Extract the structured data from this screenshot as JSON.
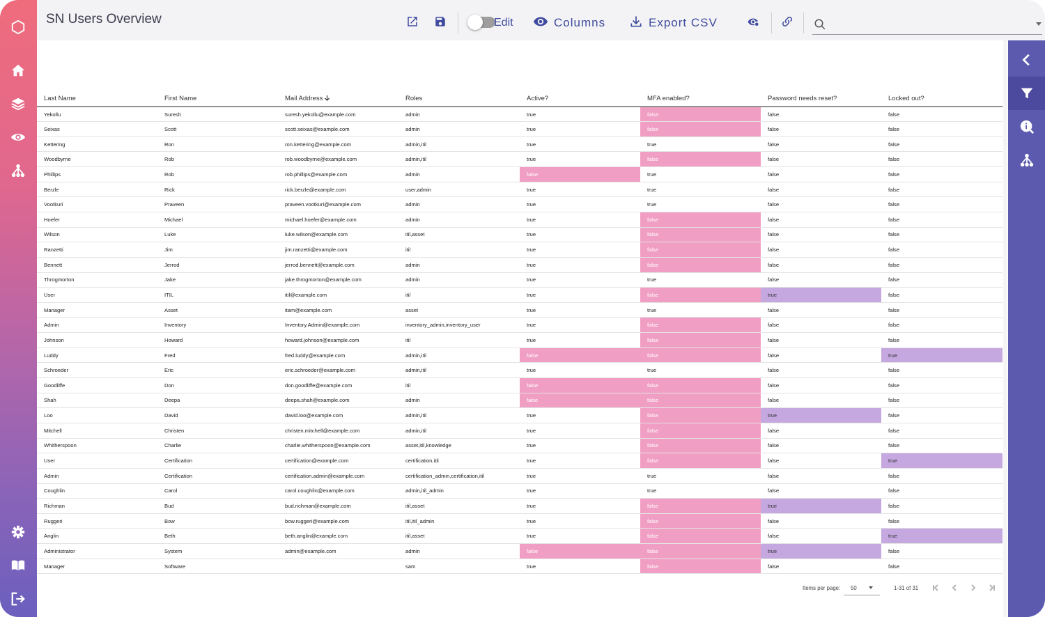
{
  "header": {
    "title": "SN Users Overview",
    "edit_label": "Edit",
    "columns_label": "Columns",
    "export_label": "Export CSV",
    "search_placeholder": ""
  },
  "icons": {
    "left_nav": [
      "logo-hexagon-icon",
      "home-icon",
      "layers-icon",
      "eye-icon",
      "hierarchy-icon",
      "gear-icon",
      "book-icon",
      "logout-icon"
    ],
    "right_panel": [
      "chevron-left-icon",
      "filter-icon",
      "info-icon",
      "hierarchy-icon"
    ]
  },
  "colors": {
    "flag_false": "#f19ec4",
    "flag_true": "#c4a8df",
    "accent": "#3f4b9e",
    "right_panel": "#5c5aaf"
  },
  "table": {
    "columns": [
      "Last Name",
      "First Name",
      "Mail Address",
      "Roles",
      "Active?",
      "MFA enabled?",
      "Password needs reset?",
      "Locked out?"
    ],
    "sorted_column": "Mail Address",
    "rows": [
      [
        "Yekollu",
        "Suresh",
        "suresh.yekollu@example.com",
        "admin",
        "true",
        "false",
        "false",
        "false"
      ],
      [
        "Seixas",
        "Scott",
        "scott.seixas@example.com",
        "admin",
        "true",
        "false",
        "false",
        "false"
      ],
      [
        "Kettering",
        "Ron",
        "ron.kettering@example.com",
        "admin,itil",
        "true",
        "true",
        "false",
        "false"
      ],
      [
        "Woodbyrne",
        "Rob",
        "rob.woodbyrne@example.com",
        "admin,itil",
        "true",
        "false",
        "false",
        "false"
      ],
      [
        "Phillips",
        "Rob",
        "rob.phillips@example.com",
        "admin",
        "false",
        "true",
        "false",
        "false"
      ],
      [
        "Berzle",
        "Rick",
        "rick.berzle@example.com",
        "user,admin",
        "true",
        "true",
        "false",
        "false"
      ],
      [
        "Vootkuri",
        "Praveen",
        "praveen.vootkuri@example.com",
        "admin",
        "true",
        "true",
        "false",
        "false"
      ],
      [
        "Hoefer",
        "Michael",
        "michael.hoefer@example.com",
        "admin",
        "true",
        "false",
        "false",
        "false"
      ],
      [
        "Wilson",
        "Luke",
        "luke.wilson@example.com",
        "itil,asset",
        "true",
        "false",
        "false",
        "false"
      ],
      [
        "Ranzetti",
        "Jim",
        "jim.ranzetti@example.com",
        "itil",
        "true",
        "false",
        "false",
        "false"
      ],
      [
        "Bennett",
        "Jerrod",
        "jerrod.bennett@example.com",
        "admin",
        "true",
        "false",
        "false",
        "false"
      ],
      [
        "Throgmorton",
        "Jake",
        "jake.throgmorton@example.com",
        "admin",
        "true",
        "true",
        "false",
        "false"
      ],
      [
        "User",
        "ITIL",
        "itil@example.com",
        "itil",
        "true",
        "false",
        "true",
        "false"
      ],
      [
        "Manager",
        "Asset",
        "itam@example.com",
        "asset",
        "true",
        "true",
        "false",
        "false"
      ],
      [
        "Admin",
        "Inventory",
        "Inventory.Admin@example.com",
        "inventory_admin,inventory_user",
        "true",
        "false",
        "false",
        "false"
      ],
      [
        "Johnson",
        "Howard",
        "howard.johnson@example.com",
        "itil",
        "true",
        "false",
        "false",
        "false"
      ],
      [
        "Luddy",
        "Fred",
        "fred.luddy@example.com",
        "admin,itil",
        "false",
        "false",
        "false",
        "true"
      ],
      [
        "Schroeder",
        "Eric",
        "eric.schroeder@example.com",
        "admin,itil",
        "true",
        "true",
        "false",
        "false"
      ],
      [
        "Goodliffe",
        "Don",
        "don.goodliffe@example.com",
        "itil",
        "false",
        "false",
        "false",
        "false"
      ],
      [
        "Shah",
        "Deepa",
        "deepa.shah@example.com",
        "admin",
        "false",
        "false",
        "false",
        "false"
      ],
      [
        "Loo",
        "David",
        "david.loo@example.com",
        "admin,itil",
        "true",
        "false",
        "true",
        "false"
      ],
      [
        "Mitchell",
        "Christen",
        "christen.mitchell@example.com",
        "admin,itil",
        "true",
        "false",
        "false",
        "false"
      ],
      [
        "Whitherspoon",
        "Charlie",
        "charlie.whitherspoon@example.com",
        "asset,itil,knowledge",
        "true",
        "false",
        "false",
        "false"
      ],
      [
        "User",
        "Certification",
        "certification@example.com",
        "certification,itil",
        "true",
        "false",
        "false",
        "true"
      ],
      [
        "Admin",
        "Certification",
        "certification.admin@example.com",
        "certification_admin,certification,itil",
        "true",
        "true",
        "false",
        "false"
      ],
      [
        "Coughlin",
        "Carol",
        "carol.coughlin@example.com",
        "admin,itil_admin",
        "true",
        "true",
        "false",
        "false"
      ],
      [
        "Richman",
        "Bud",
        "bud.richman@example.com",
        "itil,asset",
        "true",
        "false",
        "true",
        "false"
      ],
      [
        "Ruggeri",
        "Bow",
        "bow.ruggeri@example.com",
        "itil,itil_admin",
        "true",
        "false",
        "false",
        "false"
      ],
      [
        "Anglin",
        "Beth",
        "beth.anglin@example.com",
        "itil,asset",
        "true",
        "false",
        "false",
        "true"
      ],
      [
        "Administrator",
        "System",
        "admin@example.com",
        "admin",
        "false",
        "false",
        "true",
        "false"
      ],
      [
        "Manager",
        "Software",
        "",
        "sam",
        "true",
        "false",
        "false",
        "false"
      ]
    ]
  },
  "paginator": {
    "items_per_page_label": "Items per page:",
    "items_per_page": "50",
    "range_label": "1-31 of 31"
  }
}
